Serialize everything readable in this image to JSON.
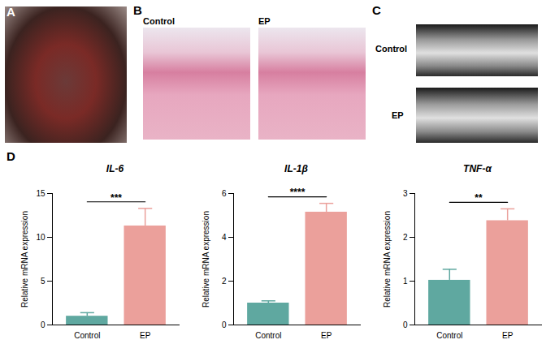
{
  "panels": [
    {
      "label": "A"
    },
    {
      "label": "B",
      "captions": [
        "Control",
        "EP"
      ]
    },
    {
      "label": "C",
      "captions": [
        "Control",
        "EP"
      ]
    },
    {
      "label": "D"
    }
  ],
  "chart_data": [
    {
      "type": "bar",
      "title": "IL-6",
      "y_label": "Relative mRNA expression",
      "categories": [
        "Control",
        "EP"
      ],
      "values": [
        1.0,
        11.3
      ],
      "errors": [
        0.4,
        2.0
      ],
      "colors": [
        "#5fa8a0",
        "#eba09b"
      ],
      "ylim": [
        0,
        15
      ],
      "yticks": [
        0,
        5,
        10,
        15
      ],
      "significance": "***"
    },
    {
      "type": "bar",
      "title": "IL-1β",
      "y_label": "Relative mRNA expression",
      "categories": [
        "Control",
        "EP"
      ],
      "values": [
        1.0,
        5.15
      ],
      "errors": [
        0.1,
        0.4
      ],
      "colors": [
        "#5fa8a0",
        "#eba09b"
      ],
      "ylim": [
        0,
        6
      ],
      "yticks": [
        0,
        2,
        4,
        6
      ],
      "significance": "****"
    },
    {
      "type": "bar",
      "title": "TNF-α",
      "y_label": "Relative mRNA expression",
      "categories": [
        "Control",
        "EP"
      ],
      "values": [
        1.02,
        2.38
      ],
      "errors": [
        0.25,
        0.27
      ],
      "colors": [
        "#5fa8a0",
        "#eba09b"
      ],
      "ylim": [
        0,
        3
      ],
      "yticks": [
        0,
        1,
        2,
        3
      ],
      "significance": "**"
    }
  ]
}
